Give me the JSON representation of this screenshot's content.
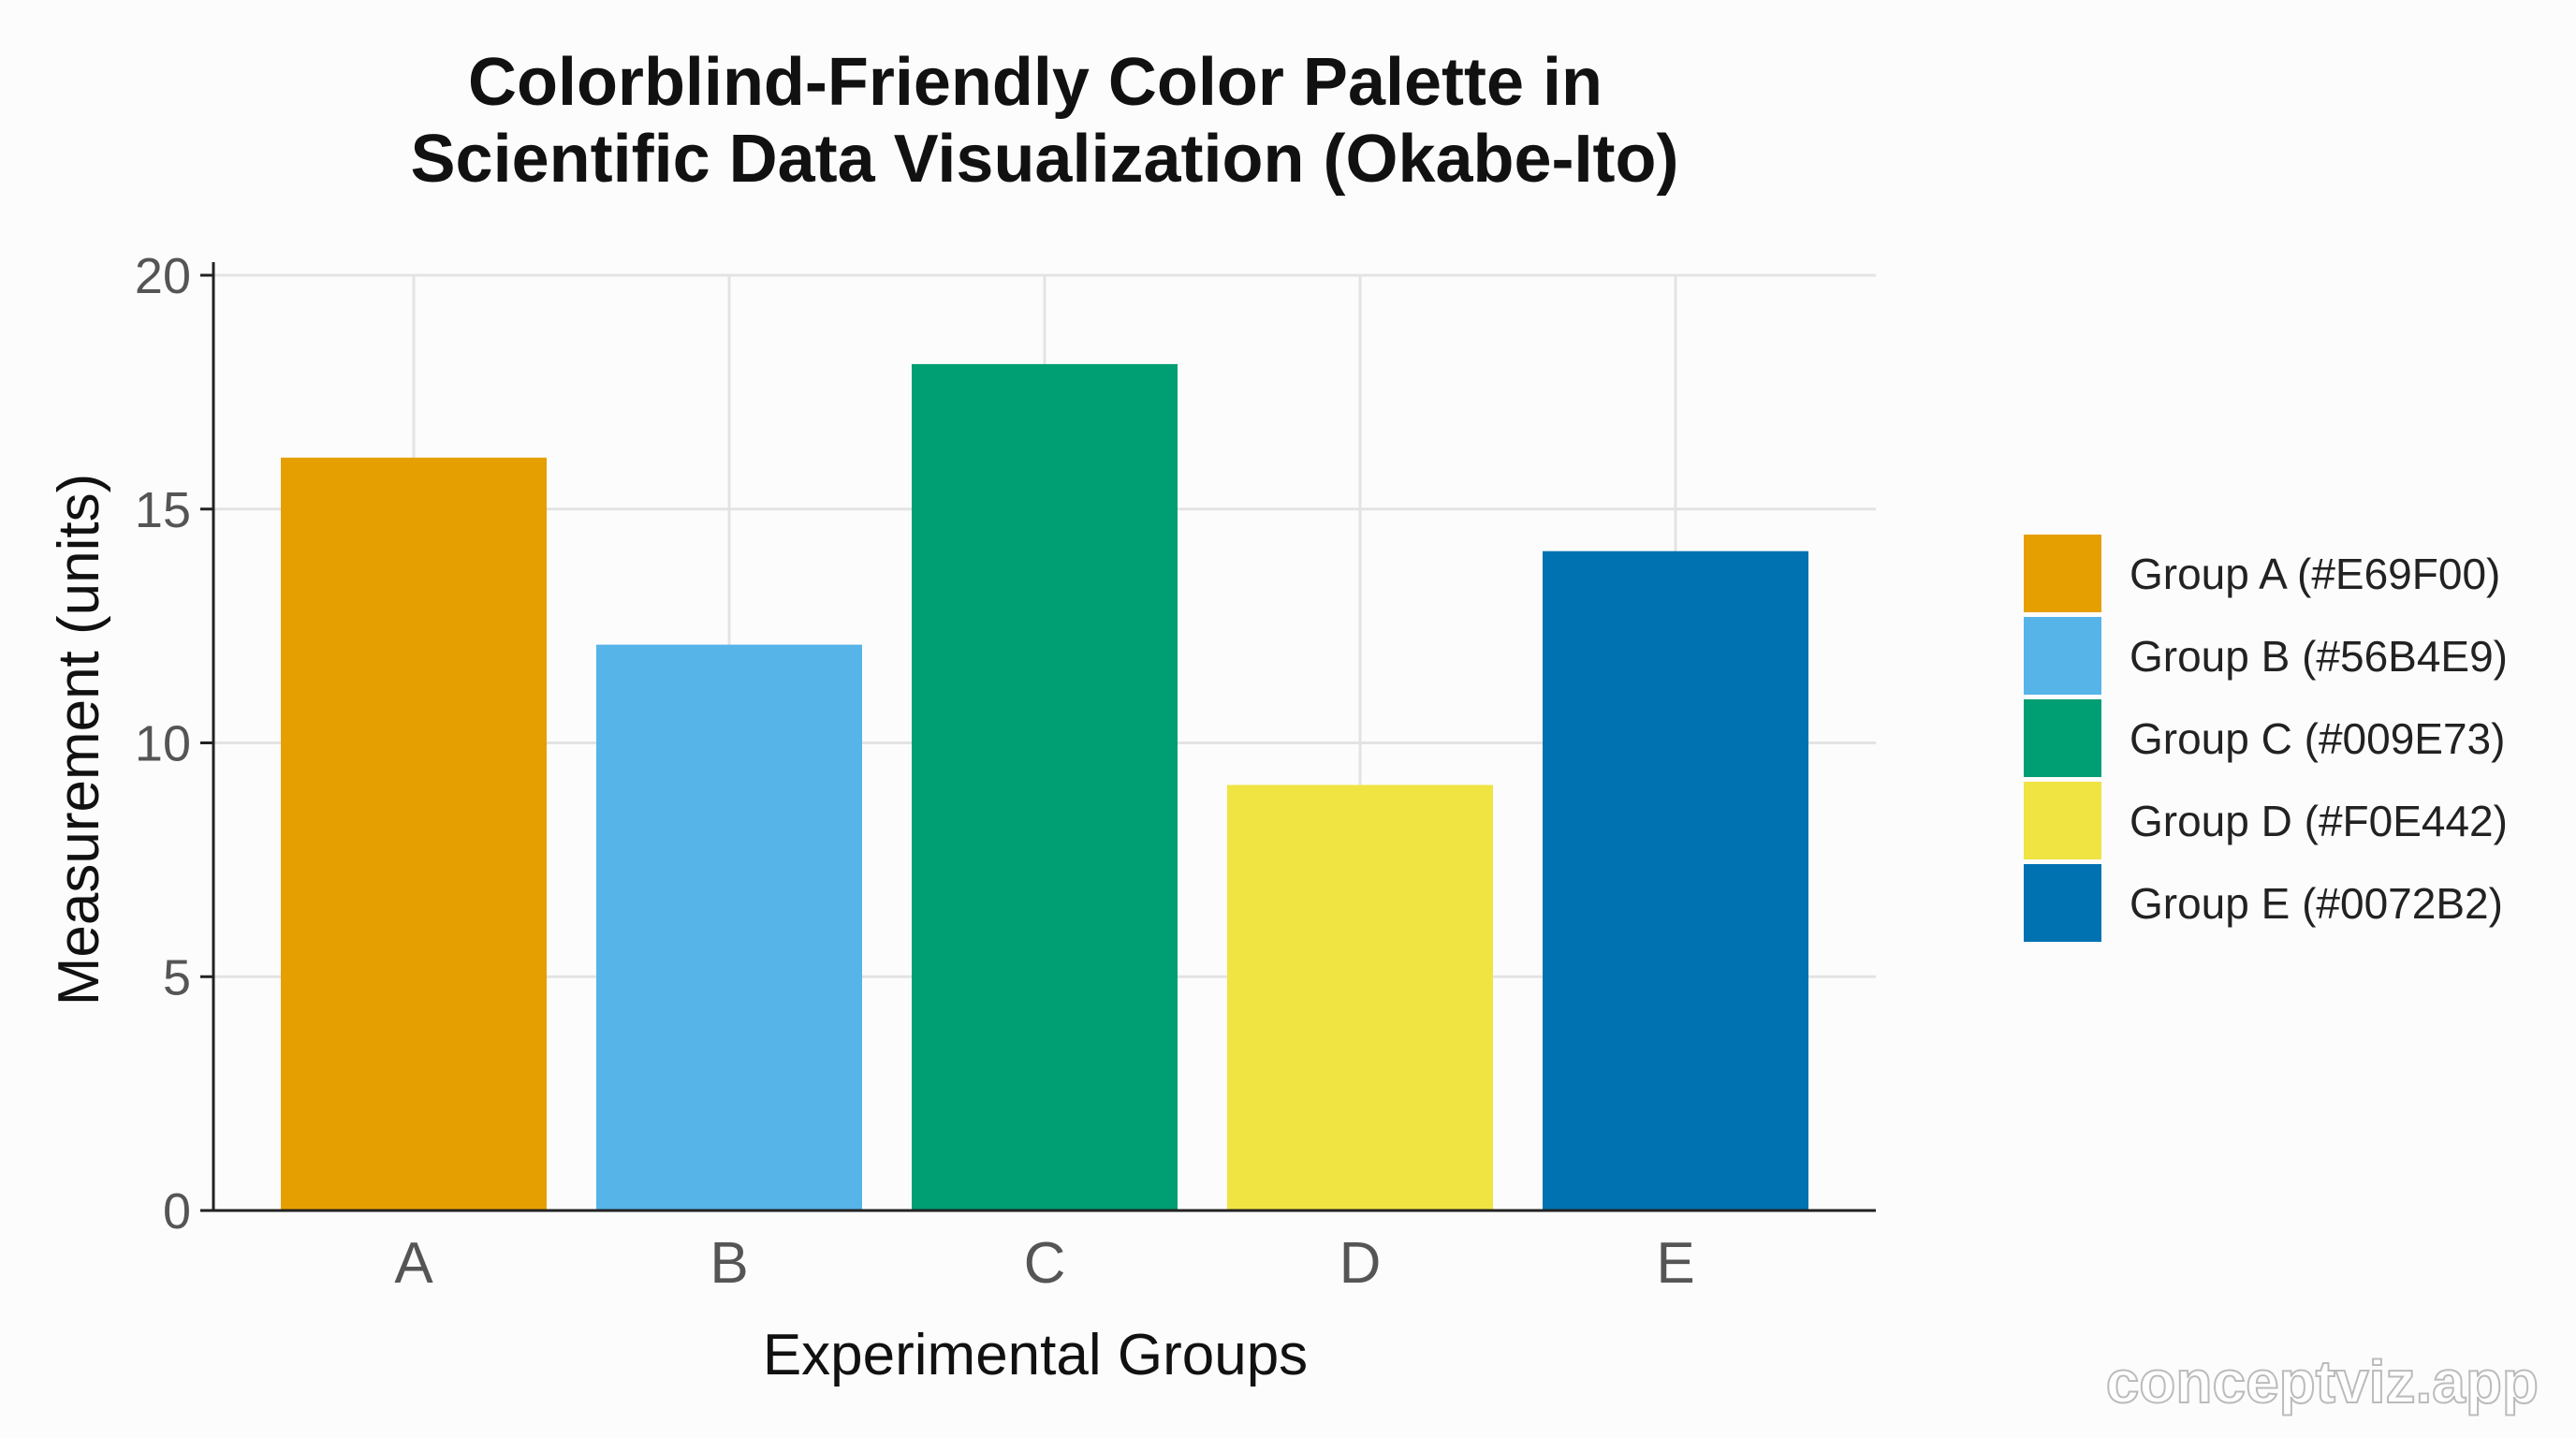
{
  "chart_data": {
    "type": "bar",
    "title": [
      "Colorblind-Friendly Color Palette in",
      "Scientific Data Visualization (Okabe-Ito)"
    ],
    "xlabel": "Experimental Groups",
    "ylabel": "Measurement (units)",
    "categories": [
      "A",
      "B",
      "C",
      "D",
      "E"
    ],
    "values": [
      16.1,
      12.1,
      18.1,
      9.1,
      14.1
    ],
    "colors": [
      "#E69F00",
      "#56B4E9",
      "#009E73",
      "#F0E442",
      "#0072B2"
    ],
    "ylim": [
      0,
      20
    ],
    "yticks": [
      "0",
      "5",
      "10",
      "15",
      "20"
    ],
    "grid": true,
    "legend_position": "right",
    "legend": [
      "Group A (#E69F00)",
      "Group B (#56B4E9)",
      "Group C (#009E73)",
      "Group D (#F0E442)",
      "Group E (#0072B2)"
    ]
  },
  "watermark": "conceptviz.app"
}
